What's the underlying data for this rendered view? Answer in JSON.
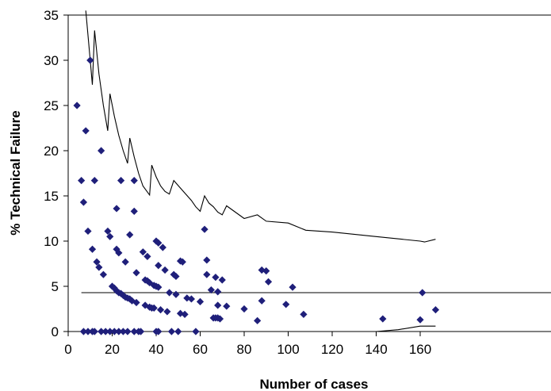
{
  "chart_data": {
    "type": "scatter",
    "title": "",
    "xlabel": "Number of cases",
    "ylabel": "% Technical Failure",
    "xlim": [
      0,
      167
    ],
    "ylim": [
      0,
      35
    ],
    "x_ticks": [
      0,
      20,
      40,
      60,
      80,
      100,
      120,
      140,
      160
    ],
    "y_ticks": [
      0,
      5,
      10,
      15,
      20,
      25,
      30,
      35
    ],
    "grid": false,
    "legend": "none",
    "colors": {
      "points": "#1f1f7a",
      "lines": "#000000"
    },
    "mean_line": 4.3,
    "upper_limit": [
      [
        8,
        35.5
      ],
      [
        10,
        30
      ],
      [
        11,
        27.3
      ],
      [
        12,
        33.3
      ],
      [
        14,
        28.5
      ],
      [
        16,
        25
      ],
      [
        18,
        22.2
      ],
      [
        19,
        26.3
      ],
      [
        21,
        23.8
      ],
      [
        23,
        21.7
      ],
      [
        25,
        20
      ],
      [
        27,
        18.6
      ],
      [
        28,
        21.4
      ],
      [
        30,
        19.3
      ],
      [
        32,
        17.5
      ],
      [
        34,
        16.1
      ],
      [
        37,
        15.1
      ],
      [
        38,
        18.4
      ],
      [
        40,
        17.1
      ],
      [
        42,
        16.1
      ],
      [
        44,
        15.5
      ],
      [
        46,
        15.2
      ],
      [
        48,
        16.7
      ],
      [
        52,
        15.6
      ],
      [
        56,
        14.5
      ],
      [
        58,
        13.8
      ],
      [
        60,
        13.3
      ],
      [
        62,
        15
      ],
      [
        64,
        14.2
      ],
      [
        66,
        13.8
      ],
      [
        68,
        13.2
      ],
      [
        70,
        12.9
      ],
      [
        72,
        13.9
      ],
      [
        76,
        13.2
      ],
      [
        80,
        12.5
      ],
      [
        86,
        12.9
      ],
      [
        90,
        12.2
      ],
      [
        100,
        12
      ],
      [
        108,
        11.2
      ],
      [
        120,
        11
      ],
      [
        140,
        10.5
      ],
      [
        160,
        10
      ],
      [
        162,
        9.9
      ],
      [
        167,
        10.2
      ]
    ],
    "lower_limit": [
      [
        4,
        0
      ],
      [
        140,
        0
      ],
      [
        150,
        0.2
      ],
      [
        160,
        0.6
      ],
      [
        167,
        0.6
      ]
    ],
    "points": [
      [
        4,
        25
      ],
      [
        6,
        16.7
      ],
      [
        7,
        14.3
      ],
      [
        7,
        0
      ],
      [
        8,
        22.2
      ],
      [
        9,
        11.1
      ],
      [
        9,
        0
      ],
      [
        10,
        30
      ],
      [
        11,
        9.1
      ],
      [
        11,
        0
      ],
      [
        12,
        16.7
      ],
      [
        12,
        0
      ],
      [
        13,
        7.7
      ],
      [
        14,
        7.1
      ],
      [
        15,
        20
      ],
      [
        15,
        0
      ],
      [
        16,
        6.3
      ],
      [
        17,
        0
      ],
      [
        18,
        11.1
      ],
      [
        19,
        10.5
      ],
      [
        19,
        0
      ],
      [
        20,
        5
      ],
      [
        21,
        0
      ],
      [
        21,
        4.8
      ],
      [
        22,
        13.6
      ],
      [
        22,
        9.1
      ],
      [
        22,
        4.5
      ],
      [
        23,
        8.7
      ],
      [
        23,
        4.3
      ],
      [
        23,
        0
      ],
      [
        24,
        16.7
      ],
      [
        24,
        4.2
      ],
      [
        25,
        4
      ],
      [
        25,
        0
      ],
      [
        26,
        7.7
      ],
      [
        26,
        3.8
      ],
      [
        27,
        3.7
      ],
      [
        27,
        0
      ],
      [
        28,
        10.7
      ],
      [
        28,
        3.6
      ],
      [
        29,
        3.4
      ],
      [
        30,
        16.7
      ],
      [
        30,
        13.3
      ],
      [
        30,
        0
      ],
      [
        31,
        6.5
      ],
      [
        31,
        3.2
      ],
      [
        32,
        0
      ],
      [
        33,
        0
      ],
      [
        34,
        8.8
      ],
      [
        35,
        5.7
      ],
      [
        35,
        2.9
      ],
      [
        36,
        8.3
      ],
      [
        36,
        5.6
      ],
      [
        37,
        5.4
      ],
      [
        37,
        2.7
      ],
      [
        38,
        2.6
      ],
      [
        39,
        5.1
      ],
      [
        39,
        2.6
      ],
      [
        40,
        10
      ],
      [
        40,
        5
      ],
      [
        40,
        0
      ],
      [
        41,
        9.8
      ],
      [
        41,
        7.3
      ],
      [
        41,
        4.9
      ],
      [
        41,
        0
      ],
      [
        42,
        2.4
      ],
      [
        43,
        9.3
      ],
      [
        44,
        6.8
      ],
      [
        45,
        2.2
      ],
      [
        46,
        4.3
      ],
      [
        47,
        0
      ],
      [
        48,
        6.3
      ],
      [
        49,
        6.1
      ],
      [
        49,
        4.1
      ],
      [
        50,
        0
      ],
      [
        51,
        7.8
      ],
      [
        51,
        2
      ],
      [
        52,
        7.7
      ],
      [
        53,
        1.9
      ],
      [
        54,
        3.7
      ],
      [
        56,
        3.6
      ],
      [
        58,
        0
      ],
      [
        60,
        3.3
      ],
      [
        62,
        11.3
      ],
      [
        63,
        7.9
      ],
      [
        63,
        6.3
      ],
      [
        65,
        4.6
      ],
      [
        66,
        1.5
      ],
      [
        67,
        6
      ],
      [
        67,
        1.5
      ],
      [
        68,
        4.4
      ],
      [
        68,
        2.9
      ],
      [
        68,
        1.5
      ],
      [
        69,
        1.4
      ],
      [
        70,
        5.7
      ],
      [
        72,
        2.8
      ],
      [
        80,
        2.5
      ],
      [
        86,
        1.2
      ],
      [
        88,
        6.8
      ],
      [
        88,
        3.4
      ],
      [
        90,
        6.7
      ],
      [
        91,
        5.5
      ],
      [
        99,
        3
      ],
      [
        102,
        4.9
      ],
      [
        107,
        1.9
      ],
      [
        143,
        1.4
      ],
      [
        160,
        1.3
      ],
      [
        161,
        4.3
      ],
      [
        167,
        2.4
      ]
    ]
  }
}
